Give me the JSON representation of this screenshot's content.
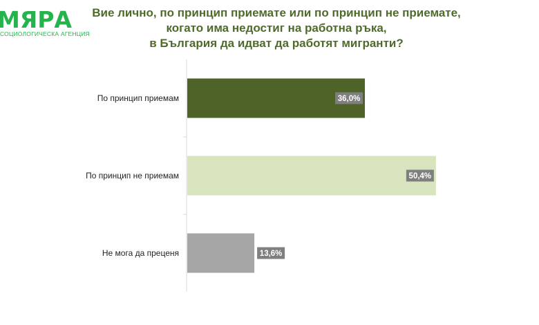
{
  "logo": {
    "name": "МЯРА",
    "subtitle": "СОЦИОЛОГИЧЕСКА АГЕНЦИЯ"
  },
  "chart_data": {
    "type": "bar",
    "orientation": "horizontal",
    "title_lines": [
      "Вие лично, по принцип приемате или по принцип не приемате,",
      "когато има недостиг на работна ръка,",
      "в България да идват да работят мигранти?"
    ],
    "categories": [
      "По принцип приемам",
      "По принцип не приемам",
      "Не мога да преценя"
    ],
    "values": [
      36.0,
      50.4,
      13.6
    ],
    "value_labels": [
      "36,0%",
      "50,4%",
      "13,6%"
    ],
    "colors": [
      "#4f6228",
      "#d7e4bd",
      "#a6a6a6"
    ],
    "label_box_color": "#7f7f7f",
    "xlim": [
      0,
      100
    ],
    "grid": false,
    "legend": "none"
  }
}
